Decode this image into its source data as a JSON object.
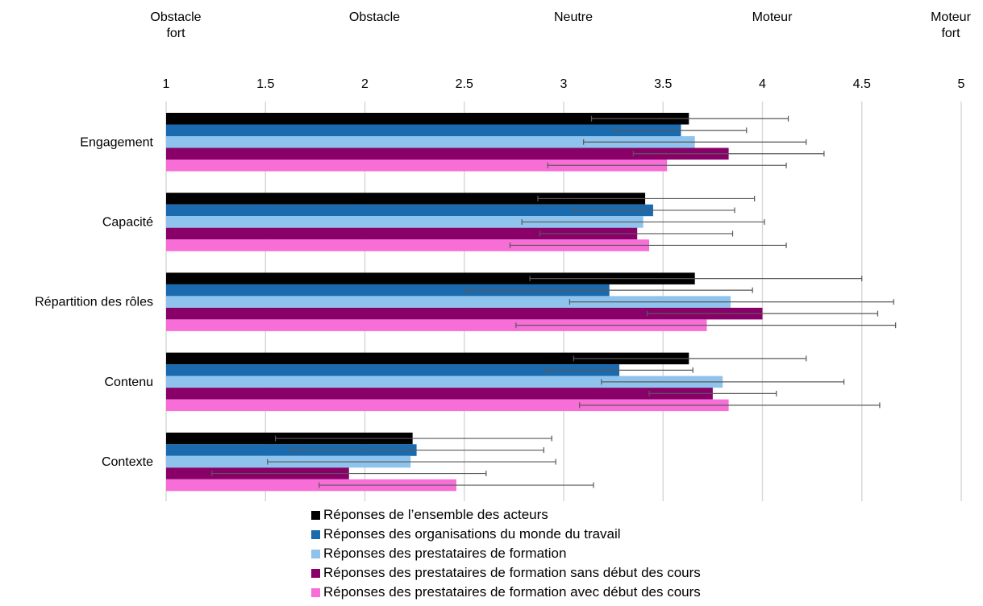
{
  "chart_data": {
    "type": "bar",
    "orientation": "horizontal",
    "scale_labels": [
      {
        "value": 1,
        "text": [
          "Obstacle",
          "fort"
        ]
      },
      {
        "value": 2,
        "text": [
          "Obstacle"
        ]
      },
      {
        "value": 3,
        "text": [
          "Neutre"
        ]
      },
      {
        "value": 4,
        "text": [
          "Moteur"
        ]
      },
      {
        "value": 5,
        "text": [
          "Moteur",
          "fort"
        ]
      }
    ],
    "xlim": [
      1,
      5
    ],
    "ticks": [
      "1",
      "1.5",
      "2",
      "2.5",
      "3",
      "3.5",
      "4",
      "4.5",
      "5"
    ],
    "grid": true,
    "legend_position": "bottom",
    "categories": [
      "Engagement",
      "Capacité",
      "Répartition des rôles",
      "Contenu",
      "Contexte"
    ],
    "series": [
      {
        "name": "Réponses de l’ensemble des acteurs",
        "color": "#000000",
        "values": [
          3.63,
          3.41,
          3.66,
          3.63,
          2.24
        ],
        "error_low": [
          3.14,
          2.87,
          2.83,
          3.05,
          1.55
        ],
        "error_high": [
          4.13,
          3.96,
          4.5,
          4.22,
          2.94
        ]
      },
      {
        "name": "Réponses des organisations du monde du travail",
        "color": "#1a6aaf",
        "values": [
          3.59,
          3.45,
          3.23,
          3.28,
          2.26
        ],
        "error_low": [
          3.25,
          3.05,
          2.51,
          2.91,
          1.63
        ],
        "error_high": [
          3.92,
          3.86,
          3.95,
          3.65,
          2.9
        ]
      },
      {
        "name": "Réponses des prestataires de formation",
        "color": "#8ec3ee",
        "values": [
          3.66,
          3.4,
          3.84,
          3.8,
          2.23
        ],
        "error_low": [
          3.1,
          2.79,
          3.03,
          3.19,
          1.51
        ],
        "error_high": [
          4.22,
          4.01,
          4.66,
          4.41,
          2.96
        ]
      },
      {
        "name": "Réponses des prestataires de formation sans début des cours",
        "color": "#890069",
        "values": [
          3.83,
          3.37,
          4.0,
          3.75,
          1.92
        ],
        "error_low": [
          3.35,
          2.88,
          3.42,
          3.43,
          1.23
        ],
        "error_high": [
          4.31,
          3.85,
          4.58,
          4.07,
          2.61
        ]
      },
      {
        "name": "Réponses des prestataires de formation avec début des cours",
        "color": "#f76ed6",
        "values": [
          3.52,
          3.43,
          3.72,
          3.83,
          2.46
        ],
        "error_low": [
          2.92,
          2.73,
          2.76,
          3.08,
          1.77
        ],
        "error_high": [
          4.12,
          4.12,
          4.67,
          4.59,
          3.15
        ]
      }
    ]
  }
}
